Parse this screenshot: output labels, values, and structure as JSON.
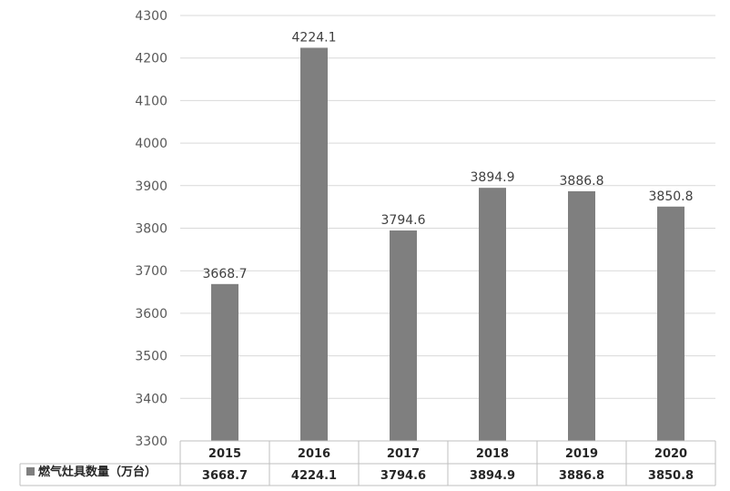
{
  "chart_data": {
    "type": "bar",
    "categories": [
      "2015",
      "2016",
      "2017",
      "2018",
      "2019",
      "2020"
    ],
    "series": [
      {
        "name": "燃气灶具数量（万台）",
        "values": [
          3668.7,
          4224.1,
          3794.6,
          3894.9,
          3886.8,
          3850.8
        ],
        "labels": [
          "3668.7",
          "4224.1",
          "3794.6",
          "3894.9",
          "3886.8",
          "3850.8"
        ],
        "color": "#7f7f7f"
      }
    ],
    "ylim": [
      3300,
      4300
    ],
    "yticks": [
      "3300",
      "3400",
      "3500",
      "3600",
      "3700",
      "3800",
      "3900",
      "4000",
      "4100",
      "4200",
      "4300"
    ],
    "grid": true,
    "legend": "data-table",
    "title": "",
    "xlabel": "",
    "ylabel": ""
  }
}
